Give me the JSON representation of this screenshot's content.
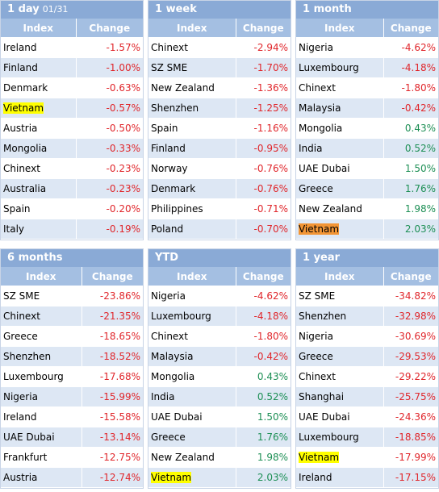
{
  "panels": [
    {
      "title": "1 day",
      "date": "01/31",
      "col_index": "Index",
      "col_change": "Change",
      "rows": [
        {
          "index": "Ireland",
          "change": "-1.57%",
          "dir": "neg"
        },
        {
          "index": "Finland",
          "change": "-1.00%",
          "dir": "neg"
        },
        {
          "index": "Denmark",
          "change": "-0.63%",
          "dir": "neg"
        },
        {
          "index": "Vietnam",
          "change": "-0.57%",
          "dir": "neg",
          "highlight": "yellow"
        },
        {
          "index": "Austria",
          "change": "-0.50%",
          "dir": "neg"
        },
        {
          "index": "Mongolia",
          "change": "-0.33%",
          "dir": "neg"
        },
        {
          "index": "Chinext",
          "change": "-0.23%",
          "dir": "neg"
        },
        {
          "index": "Australia",
          "change": "-0.23%",
          "dir": "neg"
        },
        {
          "index": "Spain",
          "change": "-0.20%",
          "dir": "neg"
        },
        {
          "index": "Italy",
          "change": "-0.19%",
          "dir": "neg"
        }
      ]
    },
    {
      "title": "1 week",
      "date": "",
      "col_index": "Index",
      "col_change": "Change",
      "rows": [
        {
          "index": "Chinext",
          "change": "-2.94%",
          "dir": "neg"
        },
        {
          "index": "SZ SME",
          "change": "-1.70%",
          "dir": "neg"
        },
        {
          "index": "New Zealand",
          "change": "-1.36%",
          "dir": "neg"
        },
        {
          "index": "Shenzhen",
          "change": "-1.25%",
          "dir": "neg"
        },
        {
          "index": "Spain",
          "change": "-1.16%",
          "dir": "neg"
        },
        {
          "index": "Finland",
          "change": "-0.95%",
          "dir": "neg"
        },
        {
          "index": "Norway",
          "change": "-0.76%",
          "dir": "neg"
        },
        {
          "index": "Denmark",
          "change": "-0.76%",
          "dir": "neg"
        },
        {
          "index": "Philippines",
          "change": "-0.71%",
          "dir": "neg"
        },
        {
          "index": "Poland",
          "change": "-0.70%",
          "dir": "neg"
        }
      ]
    },
    {
      "title": "1 month",
      "date": "",
      "col_index": "Index",
      "col_change": "Change",
      "rows": [
        {
          "index": "Nigeria",
          "change": "-4.62%",
          "dir": "neg"
        },
        {
          "index": "Luxembourg",
          "change": "-4.18%",
          "dir": "neg"
        },
        {
          "index": "Chinext",
          "change": "-1.80%",
          "dir": "neg"
        },
        {
          "index": "Malaysia",
          "change": "-0.42%",
          "dir": "neg"
        },
        {
          "index": "Mongolia",
          "change": "0.43%",
          "dir": "pos"
        },
        {
          "index": "India",
          "change": "0.52%",
          "dir": "pos"
        },
        {
          "index": "UAE Dubai",
          "change": "1.50%",
          "dir": "pos"
        },
        {
          "index": "Greece",
          "change": "1.76%",
          "dir": "pos"
        },
        {
          "index": "New Zealand",
          "change": "1.98%",
          "dir": "pos"
        },
        {
          "index": "Vietnam",
          "change": "2.03%",
          "dir": "pos",
          "highlight": "orange"
        }
      ]
    },
    {
      "title": "6 months",
      "date": "",
      "col_index": "Index",
      "col_change": "Change",
      "rows": [
        {
          "index": "SZ SME",
          "change": "-23.86%",
          "dir": "neg"
        },
        {
          "index": "Chinext",
          "change": "-21.35%",
          "dir": "neg"
        },
        {
          "index": "Greece",
          "change": "-18.65%",
          "dir": "neg"
        },
        {
          "index": "Shenzhen",
          "change": "-18.52%",
          "dir": "neg"
        },
        {
          "index": "Luxembourg",
          "change": "-17.68%",
          "dir": "neg"
        },
        {
          "index": "Nigeria",
          "change": "-15.99%",
          "dir": "neg"
        },
        {
          "index": "Ireland",
          "change": "-15.58%",
          "dir": "neg"
        },
        {
          "index": "UAE Dubai",
          "change": "-13.14%",
          "dir": "neg"
        },
        {
          "index": "Frankfurt",
          "change": "-12.75%",
          "dir": "neg"
        },
        {
          "index": "Austria",
          "change": "-12.74%",
          "dir": "neg"
        }
      ]
    },
    {
      "title": "YTD",
      "date": "",
      "col_index": "Index",
      "col_change": "Change",
      "rows": [
        {
          "index": "Nigeria",
          "change": "-4.62%",
          "dir": "neg"
        },
        {
          "index": "Luxembourg",
          "change": "-4.18%",
          "dir": "neg"
        },
        {
          "index": "Chinext",
          "change": "-1.80%",
          "dir": "neg"
        },
        {
          "index": "Malaysia",
          "change": "-0.42%",
          "dir": "neg"
        },
        {
          "index": "Mongolia",
          "change": "0.43%",
          "dir": "pos"
        },
        {
          "index": "India",
          "change": "0.52%",
          "dir": "pos"
        },
        {
          "index": "UAE Dubai",
          "change": "1.50%",
          "dir": "pos"
        },
        {
          "index": "Greece",
          "change": "1.76%",
          "dir": "pos"
        },
        {
          "index": "New Zealand",
          "change": "1.98%",
          "dir": "pos"
        },
        {
          "index": "Vietnam",
          "change": "2.03%",
          "dir": "pos",
          "highlight": "yellow"
        }
      ]
    },
    {
      "title": "1 year",
      "date": "",
      "col_index": "Index",
      "col_change": "Change",
      "rows": [
        {
          "index": "SZ SME",
          "change": "-34.82%",
          "dir": "neg"
        },
        {
          "index": "Shenzhen",
          "change": "-32.98%",
          "dir": "neg"
        },
        {
          "index": "Nigeria",
          "change": "-30.69%",
          "dir": "neg"
        },
        {
          "index": "Greece",
          "change": "-29.53%",
          "dir": "neg"
        },
        {
          "index": "Chinext",
          "change": "-29.22%",
          "dir": "neg"
        },
        {
          "index": "Shanghai",
          "change": "-25.75%",
          "dir": "neg"
        },
        {
          "index": "UAE Dubai",
          "change": "-24.36%",
          "dir": "neg"
        },
        {
          "index": "Luxembourg",
          "change": "-18.85%",
          "dir": "neg"
        },
        {
          "index": "Vietnam",
          "change": "-17.99%",
          "dir": "neg",
          "highlight": "yellow"
        },
        {
          "index": "Ireland",
          "change": "-17.15%",
          "dir": "neg"
        }
      ]
    }
  ]
}
